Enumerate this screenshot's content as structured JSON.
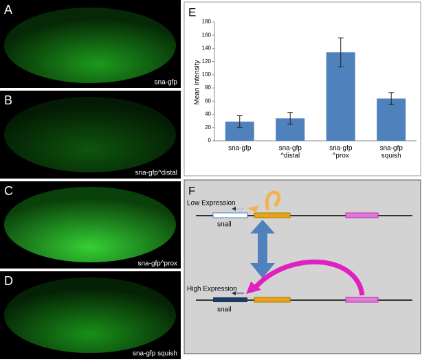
{
  "panels": [
    {
      "label": "A",
      "caption": "sna-gfp"
    },
    {
      "label": "B",
      "caption": "sna-gfp^distal"
    },
    {
      "label": "C",
      "caption": "sna-gfp^prox"
    },
    {
      "label": "D",
      "caption": "sna-gfp squish"
    }
  ],
  "chart_label": "E",
  "chart_data": {
    "type": "bar",
    "y_label": "Mean Intensity",
    "categories": [
      [
        "sna-gfp"
      ],
      [
        "sna-gfp",
        "^distal"
      ],
      [
        "sna-gfp",
        "^prox"
      ],
      [
        "sna-gfp",
        "squish"
      ]
    ],
    "values": [
      29,
      34,
      134,
      64
    ],
    "errors": [
      9,
      9,
      22,
      9
    ],
    "color": "#4f81bd",
    "ylim": [
      0,
      180
    ],
    "yticks": [
      0,
      20,
      40,
      60,
      80,
      100,
      120,
      140,
      160,
      180
    ]
  },
  "diagram": {
    "label": "F",
    "low": "Low Expression",
    "high": "High Expression",
    "gene_top": "snail",
    "gene_bottom": "snail"
  }
}
